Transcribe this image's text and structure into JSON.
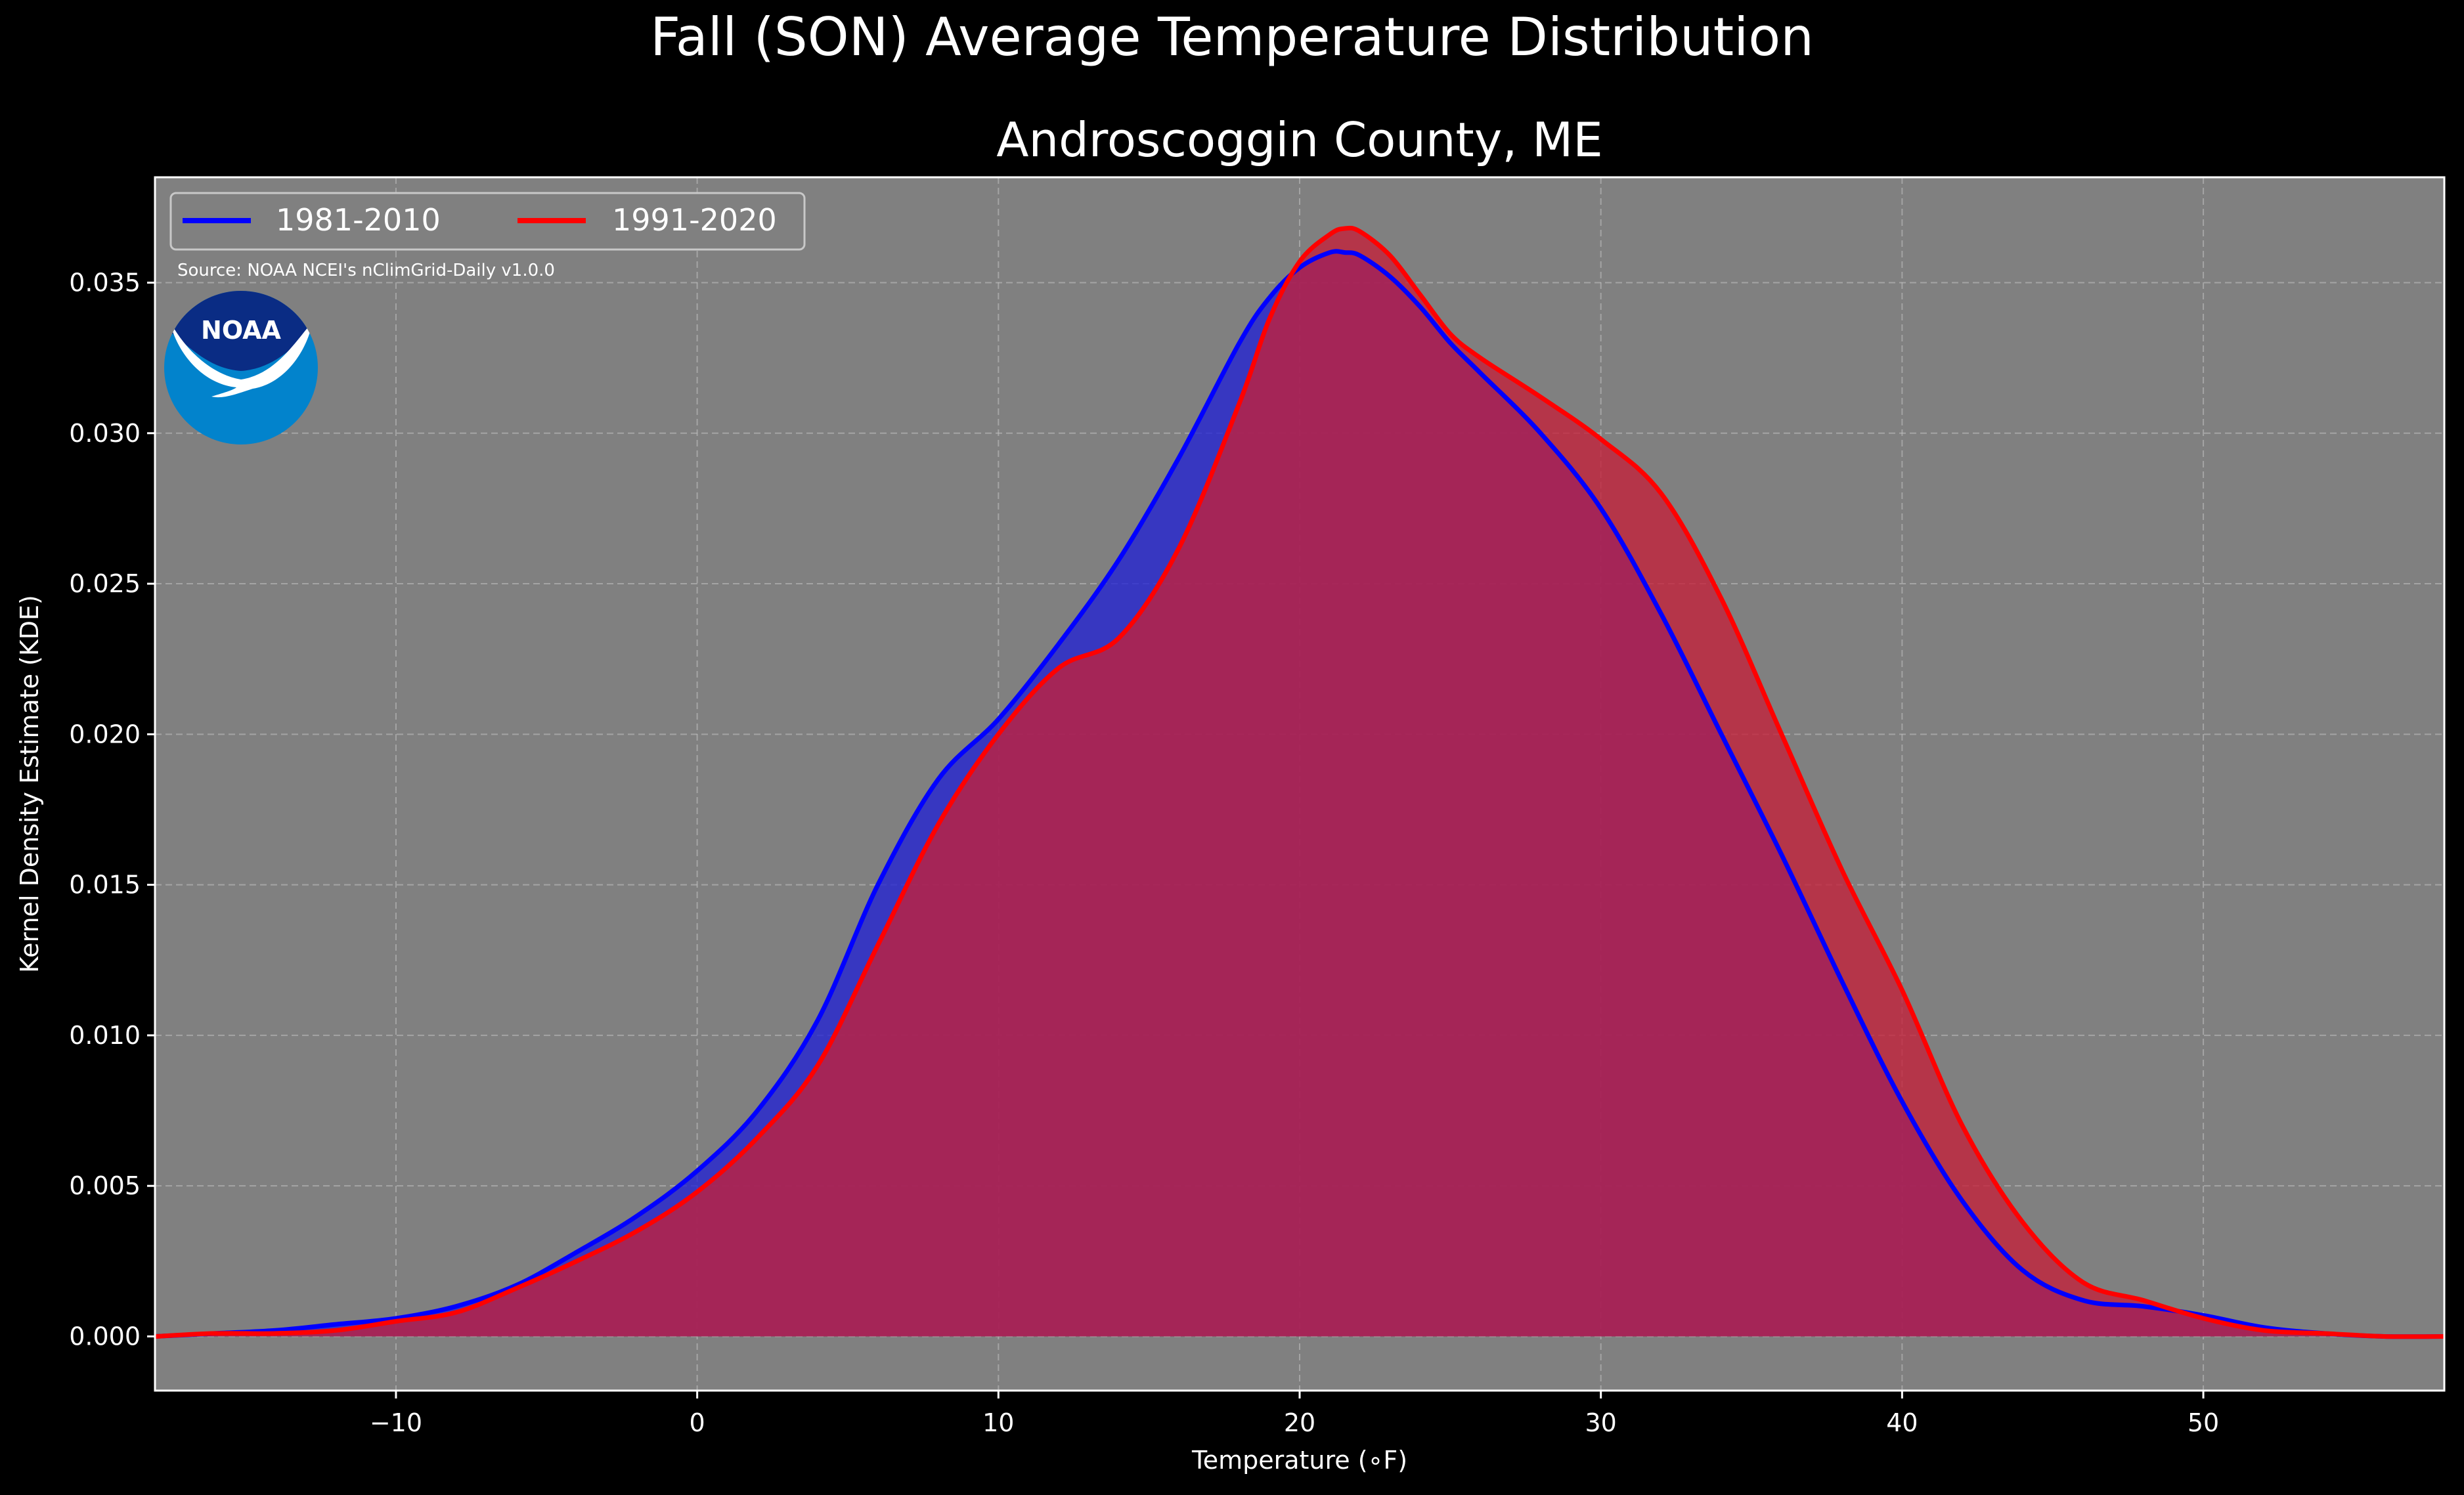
{
  "chart_data": {
    "type": "area",
    "suptitle": "Fall (SON) Average Temperature Distribution",
    "title": "Androscoggin County, ME",
    "xlabel": "Temperature (∘F)",
    "ylabel": "Kernel Density Estimate (KDE)",
    "xlim": [
      -18,
      58
    ],
    "ylim": [
      -0.0018,
      0.0385
    ],
    "grid": true,
    "legend_position": "top-left",
    "source_note": "Source: NOAA NCEI's nClimGrid-Daily v1.0.0",
    "logo_text": "NOAA",
    "x_ticks": [
      {
        "value": -10,
        "label": "−10"
      },
      {
        "value": 0,
        "label": "0"
      },
      {
        "value": 10,
        "label": "10"
      },
      {
        "value": 20,
        "label": "20"
      },
      {
        "value": 30,
        "label": "30"
      },
      {
        "value": 40,
        "label": "40"
      },
      {
        "value": 50,
        "label": "50"
      }
    ],
    "y_ticks": [
      {
        "value": 0.0,
        "label": "0.000"
      },
      {
        "value": 0.005,
        "label": "0.005"
      },
      {
        "value": 0.01,
        "label": "0.010"
      },
      {
        "value": 0.015,
        "label": "0.015"
      },
      {
        "value": 0.02,
        "label": "0.020"
      },
      {
        "value": 0.025,
        "label": "0.025"
      },
      {
        "value": 0.03,
        "label": "0.030"
      },
      {
        "value": 0.035,
        "label": "0.035"
      }
    ],
    "series": [
      {
        "name": "1981-2010",
        "color": "#0000ff",
        "fill_color": "#2222d4",
        "x": [
          -18,
          -16,
          -14,
          -12,
          -10,
          -8,
          -6,
          -4,
          -2,
          0,
          2,
          4,
          6,
          8,
          10,
          12,
          14,
          16,
          18,
          19,
          20,
          21,
          21.5,
          22,
          23,
          24,
          25,
          26,
          28,
          30,
          32,
          34,
          36,
          38,
          40,
          42,
          44,
          46,
          48,
          50,
          52,
          54,
          56,
          58
        ],
        "y": [
          0.0,
          0.0001,
          0.0002,
          0.0004,
          0.0006,
          0.001,
          0.0017,
          0.0028,
          0.004,
          0.0055,
          0.0075,
          0.0105,
          0.015,
          0.0185,
          0.0205,
          0.023,
          0.0258,
          0.0292,
          0.033,
          0.0345,
          0.0355,
          0.036,
          0.036,
          0.0359,
          0.0352,
          0.0342,
          0.033,
          0.032,
          0.03,
          0.0275,
          0.024,
          0.02,
          0.016,
          0.0118,
          0.0078,
          0.0045,
          0.0022,
          0.0012,
          0.001,
          0.0007,
          0.0003,
          0.0001,
          0.0,
          0.0
        ]
      },
      {
        "name": "1991-2020",
        "color": "#ff0000",
        "fill_color": "#c4203a",
        "x": [
          -18,
          -16,
          -14,
          -12,
          -10,
          -8,
          -6,
          -4,
          -2,
          0,
          2,
          4,
          6,
          8,
          10,
          12,
          14,
          16,
          18,
          19,
          20,
          21,
          21.5,
          22,
          23,
          24,
          25,
          26,
          28,
          30,
          32,
          34,
          36,
          38,
          40,
          42,
          44,
          46,
          48,
          50,
          52,
          54,
          56,
          58
        ],
        "y": [
          0.0,
          0.0001,
          0.0001,
          0.0002,
          0.0005,
          0.0008,
          0.0016,
          0.0025,
          0.0035,
          0.0048,
          0.0066,
          0.009,
          0.013,
          0.017,
          0.02,
          0.0222,
          0.0232,
          0.0262,
          0.031,
          0.0338,
          0.0357,
          0.0366,
          0.0368,
          0.0367,
          0.0359,
          0.0346,
          0.0333,
          0.0325,
          0.0312,
          0.0298,
          0.028,
          0.0245,
          0.02,
          0.0155,
          0.0115,
          0.007,
          0.0038,
          0.0018,
          0.0012,
          0.0006,
          0.0002,
          0.0001,
          0.0,
          0.0
        ]
      }
    ]
  },
  "colors": {
    "figure_background": "#000000",
    "axes_background": "#808080",
    "overlap_fill": "#9c1e5c",
    "text": "#ffffff",
    "grid": "#bdbdbd",
    "logo_dark_blue": "#0a2c84",
    "logo_light_blue": "#0283cc"
  }
}
